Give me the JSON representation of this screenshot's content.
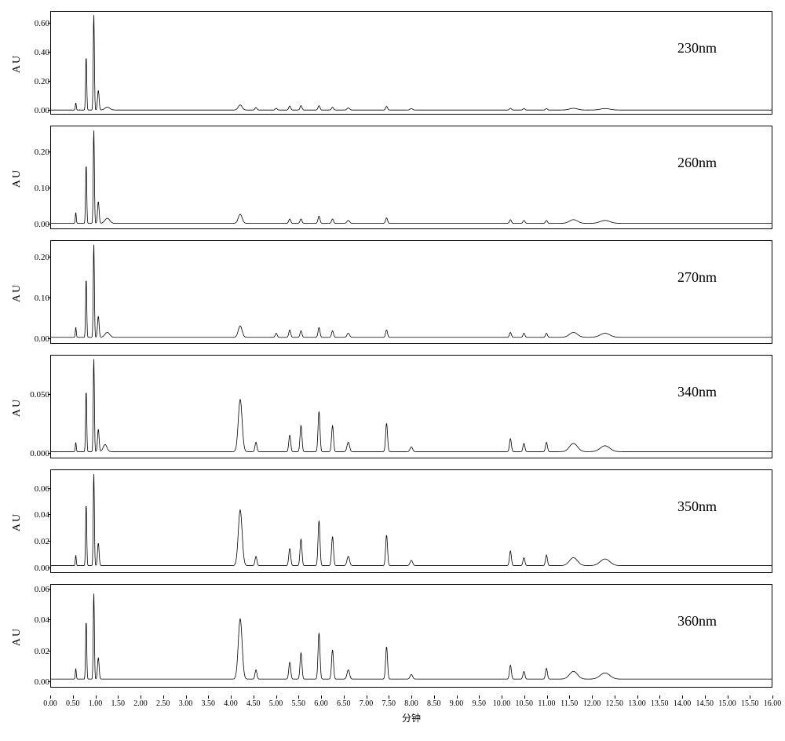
{
  "figure": {
    "x_domain": [
      0,
      16
    ],
    "x_label": "分钟",
    "x_ticks": [
      0.0,
      0.5,
      1.0,
      1.5,
      2.0,
      2.5,
      3.0,
      3.5,
      4.0,
      4.5,
      5.0,
      5.5,
      6.0,
      6.5,
      7.0,
      7.5,
      8.0,
      8.5,
      9.0,
      9.5,
      10.0,
      10.5,
      11.0,
      11.5,
      12.0,
      12.5,
      13.0,
      13.5,
      14.0,
      14.5,
      15.0,
      15.5,
      16.0
    ],
    "line_color": "#000000",
    "line_width": 0.8,
    "axis_color": "#000000",
    "background": "#ffffff",
    "y_axis_label": "AU",
    "panels": [
      {
        "label": "230nm",
        "y_range": [
          -0.02,
          0.68
        ],
        "y_ticks": [
          0.0,
          0.2,
          0.4,
          0.6
        ],
        "baseline": 0.006,
        "peaks": [
          {
            "x": 0.55,
            "h": 0.05,
            "w": 0.03
          },
          {
            "x": 0.78,
            "h": 0.37,
            "w": 0.035
          },
          {
            "x": 0.95,
            "h": 0.66,
            "w": 0.035
          },
          {
            "x": 1.05,
            "h": 0.135,
            "w": 0.05
          },
          {
            "x": 1.25,
            "h": 0.02,
            "w": 0.15
          },
          {
            "x": 4.2,
            "h": 0.035,
            "w": 0.12
          },
          {
            "x": 4.55,
            "h": 0.018,
            "w": 0.06
          },
          {
            "x": 5.0,
            "h": 0.012,
            "w": 0.06
          },
          {
            "x": 5.3,
            "h": 0.028,
            "w": 0.06
          },
          {
            "x": 5.55,
            "h": 0.03,
            "w": 0.06
          },
          {
            "x": 5.95,
            "h": 0.03,
            "w": 0.06
          },
          {
            "x": 6.25,
            "h": 0.02,
            "w": 0.06
          },
          {
            "x": 6.6,
            "h": 0.014,
            "w": 0.08
          },
          {
            "x": 7.45,
            "h": 0.025,
            "w": 0.06
          },
          {
            "x": 8.0,
            "h": 0.01,
            "w": 0.08
          },
          {
            "x": 10.2,
            "h": 0.012,
            "w": 0.06
          },
          {
            "x": 10.5,
            "h": 0.01,
            "w": 0.06
          },
          {
            "x": 11.0,
            "h": 0.01,
            "w": 0.06
          },
          {
            "x": 11.6,
            "h": 0.012,
            "w": 0.25
          },
          {
            "x": 12.3,
            "h": 0.01,
            "w": 0.3
          }
        ]
      },
      {
        "label": "260nm",
        "y_range": [
          -0.01,
          0.27
        ],
        "y_ticks": [
          0.0,
          0.1,
          0.2
        ],
        "baseline": 0.004,
        "peaks": [
          {
            "x": 0.55,
            "h": 0.03,
            "w": 0.03
          },
          {
            "x": 0.78,
            "h": 0.163,
            "w": 0.035
          },
          {
            "x": 0.95,
            "h": 0.258,
            "w": 0.035
          },
          {
            "x": 1.05,
            "h": 0.06,
            "w": 0.05
          },
          {
            "x": 1.25,
            "h": 0.014,
            "w": 0.15
          },
          {
            "x": 4.2,
            "h": 0.025,
            "w": 0.12
          },
          {
            "x": 5.3,
            "h": 0.012,
            "w": 0.06
          },
          {
            "x": 5.55,
            "h": 0.012,
            "w": 0.06
          },
          {
            "x": 5.95,
            "h": 0.02,
            "w": 0.06
          },
          {
            "x": 6.25,
            "h": 0.012,
            "w": 0.06
          },
          {
            "x": 6.6,
            "h": 0.008,
            "w": 0.08
          },
          {
            "x": 7.45,
            "h": 0.015,
            "w": 0.06
          },
          {
            "x": 10.2,
            "h": 0.01,
            "w": 0.06
          },
          {
            "x": 10.5,
            "h": 0.008,
            "w": 0.06
          },
          {
            "x": 11.0,
            "h": 0.008,
            "w": 0.06
          },
          {
            "x": 11.6,
            "h": 0.01,
            "w": 0.25
          },
          {
            "x": 12.3,
            "h": 0.008,
            "w": 0.3
          }
        ]
      },
      {
        "label": "270nm",
        "y_range": [
          -0.01,
          0.24
        ],
        "y_ticks": [
          0.0,
          0.1,
          0.2
        ],
        "baseline": 0.004,
        "peaks": [
          {
            "x": 0.55,
            "h": 0.025,
            "w": 0.03
          },
          {
            "x": 0.78,
            "h": 0.145,
            "w": 0.035
          },
          {
            "x": 0.95,
            "h": 0.23,
            "w": 0.035
          },
          {
            "x": 1.05,
            "h": 0.052,
            "w": 0.05
          },
          {
            "x": 1.25,
            "h": 0.012,
            "w": 0.15
          },
          {
            "x": 4.2,
            "h": 0.028,
            "w": 0.12
          },
          {
            "x": 5.0,
            "h": 0.01,
            "w": 0.06
          },
          {
            "x": 5.3,
            "h": 0.018,
            "w": 0.06
          },
          {
            "x": 5.55,
            "h": 0.016,
            "w": 0.06
          },
          {
            "x": 5.95,
            "h": 0.024,
            "w": 0.06
          },
          {
            "x": 6.25,
            "h": 0.016,
            "w": 0.06
          },
          {
            "x": 6.6,
            "h": 0.01,
            "w": 0.08
          },
          {
            "x": 7.45,
            "h": 0.018,
            "w": 0.06
          },
          {
            "x": 10.2,
            "h": 0.012,
            "w": 0.06
          },
          {
            "x": 10.5,
            "h": 0.01,
            "w": 0.06
          },
          {
            "x": 11.0,
            "h": 0.01,
            "w": 0.06
          },
          {
            "x": 11.6,
            "h": 0.012,
            "w": 0.25
          },
          {
            "x": 12.3,
            "h": 0.01,
            "w": 0.3
          }
        ]
      },
      {
        "label": "340nm",
        "y_range": [
          -0.003,
          0.083
        ],
        "y_ticks": [
          0.0,
          0.05
        ],
        "baseline": 0.002,
        "peaks": [
          {
            "x": 0.55,
            "h": 0.008,
            "w": 0.03
          },
          {
            "x": 0.78,
            "h": 0.052,
            "w": 0.035
          },
          {
            "x": 0.95,
            "h": 0.079,
            "w": 0.035
          },
          {
            "x": 1.05,
            "h": 0.019,
            "w": 0.05
          },
          {
            "x": 1.2,
            "h": 0.006,
            "w": 0.12
          },
          {
            "x": 4.2,
            "h": 0.044,
            "w": 0.12
          },
          {
            "x": 4.55,
            "h": 0.008,
            "w": 0.06
          },
          {
            "x": 5.3,
            "h": 0.014,
            "w": 0.06
          },
          {
            "x": 5.55,
            "h": 0.022,
            "w": 0.06
          },
          {
            "x": 5.95,
            "h": 0.034,
            "w": 0.06
          },
          {
            "x": 6.25,
            "h": 0.022,
            "w": 0.06
          },
          {
            "x": 6.6,
            "h": 0.008,
            "w": 0.08
          },
          {
            "x": 7.45,
            "h": 0.024,
            "w": 0.06
          },
          {
            "x": 8.0,
            "h": 0.004,
            "w": 0.08
          },
          {
            "x": 10.2,
            "h": 0.011,
            "w": 0.06
          },
          {
            "x": 10.5,
            "h": 0.007,
            "w": 0.06
          },
          {
            "x": 11.0,
            "h": 0.008,
            "w": 0.06
          },
          {
            "x": 11.6,
            "h": 0.007,
            "w": 0.25
          },
          {
            "x": 12.3,
            "h": 0.005,
            "w": 0.3
          }
        ]
      },
      {
        "label": "350nm",
        "y_range": [
          -0.003,
          0.074
        ],
        "y_ticks": [
          0.0,
          0.02,
          0.04,
          0.06
        ],
        "baseline": 0.002,
        "peaks": [
          {
            "x": 0.55,
            "h": 0.008,
            "w": 0.03
          },
          {
            "x": 0.78,
            "h": 0.047,
            "w": 0.035
          },
          {
            "x": 0.95,
            "h": 0.07,
            "w": 0.035
          },
          {
            "x": 1.05,
            "h": 0.017,
            "w": 0.05
          },
          {
            "x": 4.2,
            "h": 0.042,
            "w": 0.12
          },
          {
            "x": 4.55,
            "h": 0.007,
            "w": 0.06
          },
          {
            "x": 5.3,
            "h": 0.013,
            "w": 0.06
          },
          {
            "x": 5.55,
            "h": 0.02,
            "w": 0.06
          },
          {
            "x": 5.95,
            "h": 0.034,
            "w": 0.06
          },
          {
            "x": 6.25,
            "h": 0.022,
            "w": 0.06
          },
          {
            "x": 6.6,
            "h": 0.007,
            "w": 0.08
          },
          {
            "x": 7.45,
            "h": 0.023,
            "w": 0.06
          },
          {
            "x": 8.0,
            "h": 0.004,
            "w": 0.08
          },
          {
            "x": 10.2,
            "h": 0.011,
            "w": 0.06
          },
          {
            "x": 10.5,
            "h": 0.006,
            "w": 0.06
          },
          {
            "x": 11.0,
            "h": 0.008,
            "w": 0.06
          },
          {
            "x": 11.6,
            "h": 0.006,
            "w": 0.25
          },
          {
            "x": 12.3,
            "h": 0.005,
            "w": 0.3
          }
        ]
      },
      {
        "label": "360nm",
        "y_range": [
          -0.003,
          0.063
        ],
        "y_ticks": [
          0.0,
          0.02,
          0.04,
          0.06
        ],
        "baseline": 0.002,
        "peaks": [
          {
            "x": 0.55,
            "h": 0.007,
            "w": 0.03
          },
          {
            "x": 0.78,
            "h": 0.038,
            "w": 0.035
          },
          {
            "x": 0.95,
            "h": 0.056,
            "w": 0.035
          },
          {
            "x": 1.05,
            "h": 0.014,
            "w": 0.05
          },
          {
            "x": 4.2,
            "h": 0.039,
            "w": 0.12
          },
          {
            "x": 4.55,
            "h": 0.006,
            "w": 0.06
          },
          {
            "x": 5.3,
            "h": 0.011,
            "w": 0.06
          },
          {
            "x": 5.55,
            "h": 0.017,
            "w": 0.06
          },
          {
            "x": 5.95,
            "h": 0.03,
            "w": 0.06
          },
          {
            "x": 6.25,
            "h": 0.019,
            "w": 0.06
          },
          {
            "x": 6.6,
            "h": 0.006,
            "w": 0.08
          },
          {
            "x": 7.45,
            "h": 0.021,
            "w": 0.06
          },
          {
            "x": 8.0,
            "h": 0.003,
            "w": 0.08
          },
          {
            "x": 10.2,
            "h": 0.009,
            "w": 0.06
          },
          {
            "x": 10.5,
            "h": 0.005,
            "w": 0.06
          },
          {
            "x": 11.0,
            "h": 0.007,
            "w": 0.06
          },
          {
            "x": 11.6,
            "h": 0.005,
            "w": 0.25
          },
          {
            "x": 12.3,
            "h": 0.004,
            "w": 0.3
          }
        ]
      }
    ]
  }
}
